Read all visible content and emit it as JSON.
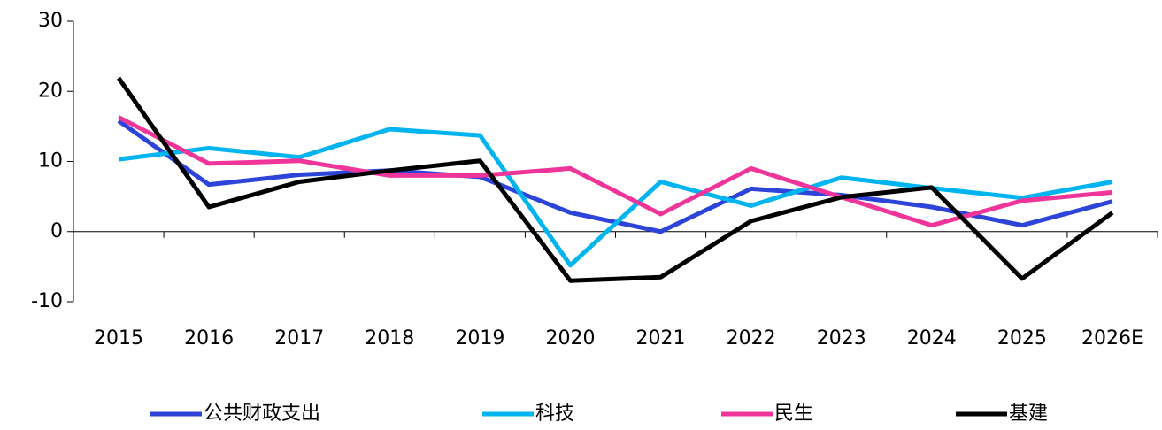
{
  "chart_data": {
    "type": "line",
    "categories": [
      "2015",
      "2016",
      "2017",
      "2018",
      "2019",
      "2020",
      "2021",
      "2022",
      "2023",
      "2024",
      "2025",
      "2026E"
    ],
    "series": [
      {
        "name": "公共财政支出",
        "color": "#2c44d8",
        "values": [
          15.8,
          6.7,
          8.1,
          8.7,
          7.8,
          2.7,
          0,
          6.1,
          5.2,
          3.5,
          0.9,
          4.3
        ]
      },
      {
        "name": "科技",
        "color": "#00b4f0",
        "values": [
          10.3,
          11.9,
          10.6,
          14.6,
          13.7,
          -4.8,
          7.1,
          3.7,
          7.7,
          6.2,
          4.8,
          7.1
        ]
      },
      {
        "name": "民生",
        "color": "#f0359a",
        "values": [
          16.3,
          9.7,
          10.1,
          8.0,
          8.0,
          9.0,
          2.5,
          9.0,
          4.9,
          0.9,
          4.4,
          5.6
        ]
      },
      {
        "name": "基建",
        "color": "#000000",
        "values": [
          21.9,
          3.5,
          7.1,
          8.7,
          10.1,
          -7.0,
          -6.5,
          1.5,
          4.9,
          6.3,
          -6.7,
          2.7
        ]
      }
    ],
    "ylim": [
      -10,
      30
    ],
    "yticks": [
      -10,
      0,
      10,
      20,
      30
    ],
    "grid": false,
    "legend": "bottom"
  }
}
